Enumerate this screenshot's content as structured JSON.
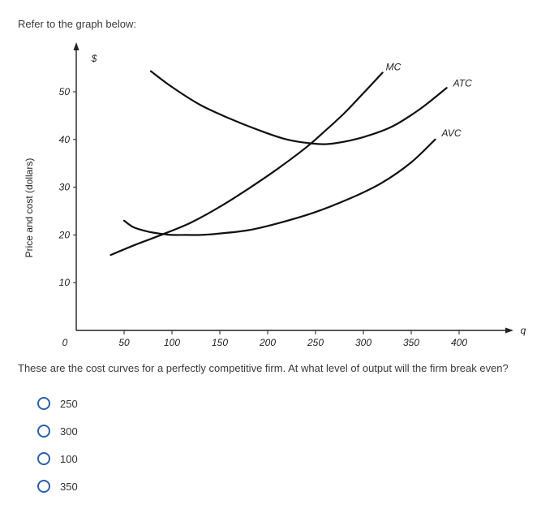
{
  "prompt": "Refer to the graph below:",
  "question": "These are the cost curves for a perfectly competitive firm. At what level of output will the firm break even?",
  "options": [
    "250",
    "300",
    "100",
    "350"
  ],
  "colors": {
    "radio": "#2b5fa8",
    "curve": "#111111"
  },
  "chart_data": {
    "type": "line",
    "ylabel": "Price and cost (dollars)",
    "y_unit_label": "$",
    "x_axis_symbol": "q",
    "xlim": [
      0,
      430
    ],
    "ylim": [
      0,
      53
    ],
    "x_ticks": [
      50,
      100,
      150,
      200,
      250,
      300,
      350,
      400
    ],
    "y_ticks": [
      10,
      20,
      30,
      40,
      50
    ],
    "origin_label": "0",
    "grid": false,
    "series": [
      {
        "name": "MC",
        "x": [
          36,
          60,
          90,
          120,
          150,
          180,
          210,
          240,
          260,
          280,
          300,
          320
        ],
        "y": [
          15.8,
          17.8,
          20.1,
          22.6,
          25.9,
          29.7,
          33.8,
          38.3,
          41.8,
          45.5,
          49.7,
          54.0
        ]
      },
      {
        "name": "ATC",
        "x": [
          78,
          100,
          130,
          160,
          190,
          220,
          250,
          270,
          300,
          330,
          360,
          387
        ],
        "y": [
          54.3,
          51.0,
          47.2,
          44.4,
          42.0,
          40.0,
          39.1,
          39.2,
          40.5,
          42.7,
          46.5,
          50.8
        ]
      },
      {
        "name": "AVC",
        "x": [
          50,
          60,
          75,
          90,
          100,
          115,
          130,
          150,
          180,
          210,
          250,
          290,
          320,
          350,
          375
        ],
        "y": [
          23.0,
          21.6,
          20.7,
          20.2,
          20.0,
          20.0,
          20.0,
          20.3,
          21.0,
          22.4,
          24.8,
          28.0,
          31.0,
          35.2,
          40.0
        ]
      }
    ]
  }
}
